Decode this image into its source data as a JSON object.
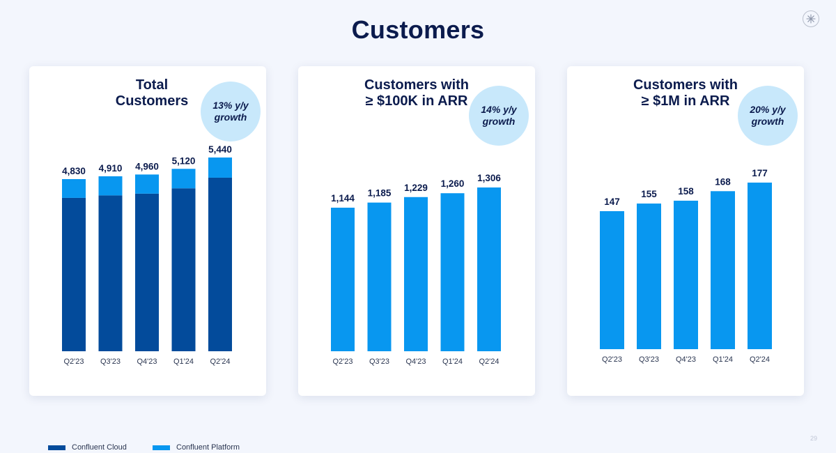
{
  "page": {
    "title": "Customers",
    "page_number": "29"
  },
  "colors": {
    "cloud": "#034b9b",
    "platform": "#0897f0",
    "badge": "#c8e8fb",
    "text": "#0b1b4d",
    "axis_text": "#2a3550"
  },
  "cards": [
    {
      "title_lines": [
        "Total",
        "Customers"
      ],
      "growth_lines": [
        "13% y/y",
        "growth"
      ]
    },
    {
      "title_lines": [
        "Customers with",
        "≥ $100K in ARR"
      ],
      "growth_lines": [
        "14% y/y",
        "growth"
      ]
    },
    {
      "title_lines": [
        "Customers with",
        "≥ $1M in ARR"
      ],
      "growth_lines": [
        "20% y/y",
        "growth"
      ]
    }
  ],
  "legend": {
    "cloud_label": "Confluent Cloud",
    "platform_label": "Confluent Platform"
  },
  "chart_data": [
    {
      "type": "bar",
      "stacked": true,
      "title": "Total Customers",
      "categories": [
        "Q2'23",
        "Q3'23",
        "Q4'23",
        "Q1'24",
        "Q2'24"
      ],
      "totals": [
        4830,
        4910,
        4960,
        5120,
        5440
      ],
      "total_labels": [
        "4,830",
        "4,910",
        "4,960",
        "5,120",
        "5,440"
      ],
      "series": [
        {
          "name": "Confluent Cloud",
          "values": [
            4300,
            4370,
            4420,
            4570,
            4870
          ]
        },
        {
          "name": "Confluent Platform",
          "values": [
            530,
            540,
            540,
            550,
            570
          ]
        }
      ],
      "legend_position": "bottom",
      "grid": false
    },
    {
      "type": "bar",
      "title": "Customers with ≥ $100K in ARR",
      "categories": [
        "Q2'23",
        "Q3'23",
        "Q4'23",
        "Q1'24",
        "Q2'24"
      ],
      "values": [
        1144,
        1185,
        1229,
        1260,
        1306
      ],
      "value_labels": [
        "1,144",
        "1,185",
        "1,229",
        "1,260",
        "1,306"
      ],
      "grid": false
    },
    {
      "type": "bar",
      "title": "Customers with ≥ $1M in ARR",
      "categories": [
        "Q2'23",
        "Q3'23",
        "Q4'23",
        "Q1'24",
        "Q2'24"
      ],
      "values": [
        147,
        155,
        158,
        168,
        177
      ],
      "value_labels": [
        "147",
        "155",
        "158",
        "168",
        "177"
      ],
      "grid": false
    }
  ]
}
